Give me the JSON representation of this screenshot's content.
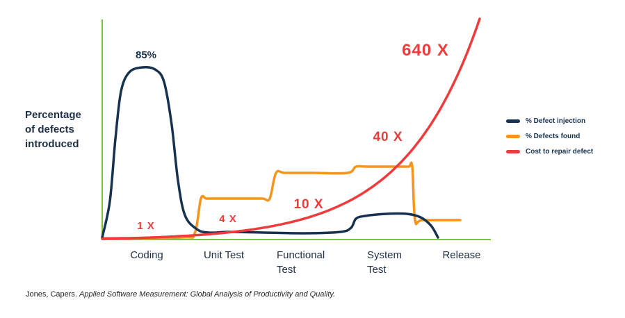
{
  "chart_data": {
    "type": "line",
    "ylabel_lines": [
      "Percentage",
      "of defects",
      "introduced"
    ],
    "categories": [
      "Coding",
      "Unit Test",
      "Functional Test",
      "System Test",
      "Release"
    ],
    "category_label_lines": [
      [
        "Coding"
      ],
      [
        "Unit Test"
      ],
      [
        "Functional",
        "Test"
      ],
      [
        "System",
        "Test"
      ],
      [
        "Release"
      ]
    ],
    "series": [
      {
        "name": "% Defect injection",
        "color": "#17324f",
        "peak_label": "85%",
        "values": [
          85,
          3,
          4,
          10,
          0
        ]
      },
      {
        "name": "% Defects found",
        "color": "#f7941e",
        "values": [
          0,
          20,
          33,
          36,
          9
        ]
      },
      {
        "name": "Cost to repair defect",
        "color": "#ef3b3b",
        "values": [
          1,
          4,
          10,
          40,
          640
        ],
        "point_labels": [
          "1 X",
          "4 X",
          "10 X",
          "40 X",
          "640 X"
        ]
      }
    ],
    "grid": false,
    "legend_position": "right"
  },
  "citation": {
    "author": "Jones, Capers.",
    "title": "Applied Software Measurement: Global Analysis of Productivity and Quality."
  }
}
